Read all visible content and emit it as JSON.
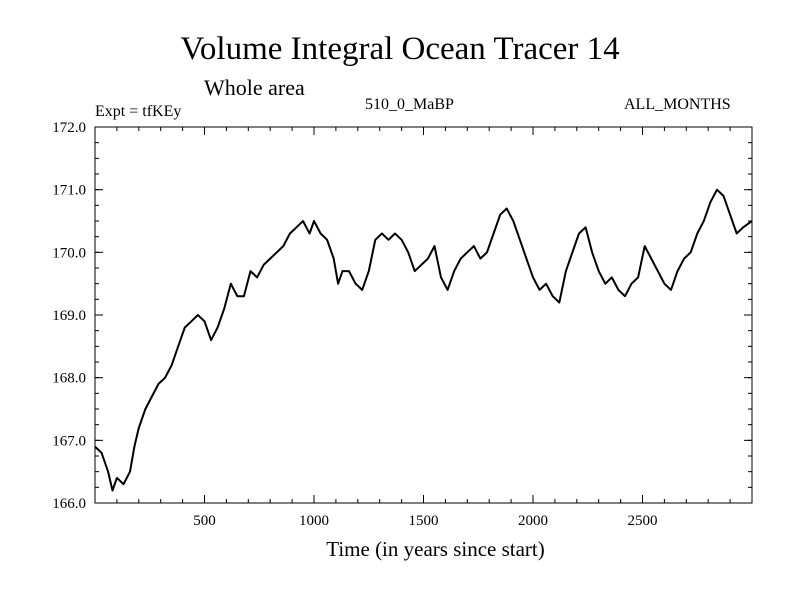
{
  "header": {
    "title": "Volume Integral Ocean Tracer 14",
    "subtitle": "Whole area",
    "experiment": "Expt = tfKEy",
    "period": "510_0_MaBP",
    "months": "ALL_MONTHS"
  },
  "chart_data": {
    "type": "line",
    "title": "Volume Integral Ocean Tracer 14",
    "subtitle": "Whole area",
    "xlabel": "Time (in years since start)",
    "ylabel": "",
    "xlim": [
      0,
      3000
    ],
    "ylim": [
      166.0,
      172.0
    ],
    "x_ticks": [
      500,
      1000,
      1500,
      2000,
      2500
    ],
    "x_tick_labels": [
      "500",
      "1000",
      "1500",
      "2000",
      "2500"
    ],
    "y_ticks": [
      166.0,
      167.0,
      168.0,
      169.0,
      170.0,
      171.0,
      172.0
    ],
    "y_tick_labels": [
      "166.0",
      "167.0",
      "168.0",
      "169.0",
      "170.0",
      "171.0",
      "172.0"
    ],
    "grid": false,
    "line_color": "#000000",
    "series": [
      {
        "x": [
          0,
          30,
          60,
          80,
          100,
          130,
          160,
          180,
          200,
          230,
          260,
          290,
          320,
          350,
          380,
          410,
          440,
          470,
          500,
          530,
          560,
          590,
          620,
          650,
          680,
          710,
          740,
          770,
          800,
          830,
          860,
          890,
          920,
          950,
          980,
          1000,
          1030,
          1060,
          1090,
          1110,
          1130,
          1160,
          1190,
          1220,
          1250,
          1280,
          1310,
          1340,
          1370,
          1400,
          1430,
          1460,
          1490,
          1520,
          1550,
          1580,
          1610,
          1640,
          1670,
          1700,
          1730,
          1760,
          1790,
          1820,
          1850,
          1880,
          1910,
          1940,
          1970,
          2000,
          2030,
          2060,
          2090,
          2120,
          2150,
          2180,
          2210,
          2240,
          2270,
          2300,
          2330,
          2360,
          2390,
          2420,
          2450,
          2480,
          2510,
          2540,
          2570,
          2600,
          2630,
          2660,
          2690,
          2720,
          2750,
          2780,
          2810,
          2840,
          2870,
          2900,
          2930,
          2960,
          3000
        ],
        "y": [
          166.9,
          166.8,
          166.5,
          166.2,
          166.4,
          166.3,
          166.5,
          166.9,
          167.2,
          167.5,
          167.7,
          167.9,
          168.0,
          168.2,
          168.5,
          168.8,
          168.9,
          169.0,
          168.9,
          168.6,
          168.8,
          169.1,
          169.5,
          169.3,
          169.3,
          169.7,
          169.6,
          169.8,
          169.9,
          170.0,
          170.1,
          170.3,
          170.4,
          170.5,
          170.3,
          170.5,
          170.3,
          170.2,
          169.9,
          169.5,
          169.7,
          169.7,
          169.5,
          169.4,
          169.7,
          170.2,
          170.3,
          170.2,
          170.3,
          170.2,
          170.0,
          169.7,
          169.8,
          169.9,
          170.1,
          169.6,
          169.4,
          169.7,
          169.9,
          170.0,
          170.1,
          169.9,
          170.0,
          170.3,
          170.6,
          170.7,
          170.5,
          170.2,
          169.9,
          169.6,
          169.4,
          169.5,
          169.3,
          169.2,
          169.7,
          170.0,
          170.3,
          170.4,
          170.0,
          169.7,
          169.5,
          169.6,
          169.4,
          169.3,
          169.5,
          169.6,
          170.1,
          169.9,
          169.7,
          169.5,
          169.4,
          169.7,
          169.9,
          170.0,
          170.3,
          170.5,
          170.8,
          171.0,
          170.9,
          170.6,
          170.3,
          170.4,
          170.5
        ]
      }
    ]
  }
}
